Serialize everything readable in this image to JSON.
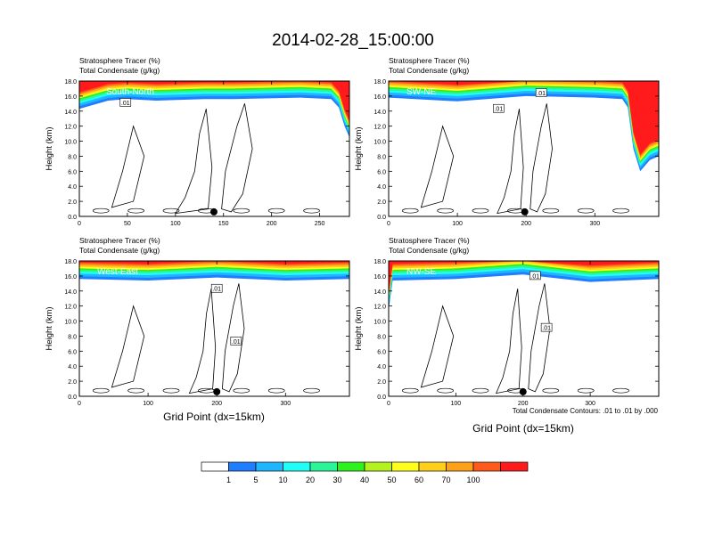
{
  "title": "2014-02-28_15:00:00",
  "panel_header": {
    "line1": "Stratosphere Tracer   (%)",
    "line2": "Total Condensate   (g/kg)"
  },
  "ylabel": "Height (km)",
  "xlabel": "Grid Point (dx=15km)",
  "contour_note": "Total Condensate Contours: .01 to .01 by .000",
  "contour_label": ".01",
  "colors": {
    "levels": [
      "#ffffff",
      "#1f7dff",
      "#20b6ff",
      "#1ffff6",
      "#2bf599",
      "#2df21b",
      "#b3f21e",
      "#ffff1b",
      "#ffcf1b",
      "#ffa01b",
      "#ff5a1b",
      "#ff1b1b"
    ],
    "contour": "#000000"
  },
  "colorbar": {
    "labels": [
      "1",
      "5",
      "10",
      "20",
      "30",
      "40",
      "50",
      "60",
      "70",
      "100"
    ]
  },
  "chart_data": [
    {
      "type": "heatmap",
      "label": "South-North",
      "xlim": [
        0,
        281
      ],
      "ylim": [
        0,
        18
      ],
      "xticks": [
        "0",
        "50",
        "100",
        "150",
        "200",
        "250"
      ],
      "yticks": [
        "0.0",
        "2.0",
        "4.0",
        "6.0",
        "8.0",
        "10.0",
        "12.0",
        "14.0",
        "16.0",
        "18.0"
      ],
      "marker_x": 140,
      "tropopause_km": [
        [
          0,
          14.3
        ],
        [
          30,
          15.4
        ],
        [
          50,
          15.6
        ],
        [
          80,
          15.4
        ],
        [
          130,
          15.6
        ],
        [
          160,
          15.6
        ],
        [
          230,
          15.8
        ],
        [
          262,
          15.6
        ],
        [
          270,
          14.5
        ],
        [
          276,
          12
        ],
        [
          281,
          10.5
        ]
      ],
      "contour_labels": [
        [
          48,
          15.1
        ]
      ]
    },
    {
      "type": "heatmap",
      "label": "SW-NE",
      "xlim": [
        0,
        393
      ],
      "ylim": [
        0,
        18
      ],
      "xticks": [
        "0",
        "100",
        "200",
        "300"
      ],
      "yticks": [
        "0.0",
        "2.0",
        "4.0",
        "6.0",
        "8.0",
        "10.0",
        "12.0",
        "14.0",
        "16.0",
        "18.0"
      ],
      "marker_x": 198,
      "tropopause_km": [
        [
          0,
          15.8
        ],
        [
          100,
          15.3
        ],
        [
          200,
          16.0
        ],
        [
          300,
          15.8
        ],
        [
          340,
          15.6
        ],
        [
          348,
          14.5
        ],
        [
          356,
          9
        ],
        [
          366,
          6
        ],
        [
          380,
          7.5
        ],
        [
          393,
          8
        ]
      ],
      "contour_labels": [
        [
          160,
          14.3
        ],
        [
          222,
          16.4
        ]
      ]
    },
    {
      "type": "heatmap",
      "label": "West-East",
      "xlim": [
        0,
        393
      ],
      "ylim": [
        0,
        18
      ],
      "xticks": [
        "0",
        "100",
        "200",
        "300"
      ],
      "yticks": [
        "0.0",
        "2.0",
        "4.0",
        "6.0",
        "8.0",
        "10.0",
        "12.0",
        "14.0",
        "16.0",
        "18.0"
      ],
      "marker_x": 200,
      "tropopause_km": [
        [
          0,
          15.6
        ],
        [
          100,
          15.4
        ],
        [
          200,
          15.8
        ],
        [
          300,
          15.4
        ],
        [
          393,
          15.6
        ]
      ],
      "contour_labels": [
        [
          200,
          14.3
        ],
        [
          228,
          7.3
        ]
      ]
    },
    {
      "type": "heatmap",
      "label": "NW-SE",
      "xlim": [
        0,
        402
      ],
      "ylim": [
        0,
        18
      ],
      "xticks": [
        "0",
        "100",
        "200",
        "300"
      ],
      "yticks": [
        "0.0",
        "2.0",
        "4.0",
        "6.0",
        "8.0",
        "10.0",
        "12.0",
        "14.0",
        "16.0",
        "18.0"
      ],
      "marker_x": 200,
      "tropopause_km": [
        [
          0,
          11.5
        ],
        [
          6,
          15.4
        ],
        [
          100,
          15.6
        ],
        [
          200,
          16.2
        ],
        [
          300,
          15.2
        ],
        [
          402,
          15.6
        ]
      ],
      "contour_labels": [
        [
          218,
          16.0
        ],
        [
          235,
          9.1
        ]
      ]
    }
  ]
}
